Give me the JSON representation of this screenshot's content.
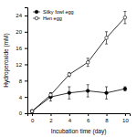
{
  "chart_data": {
    "type": "line",
    "x_label": "Incubation time (day)",
    "y_label": "Hydroperoxide (mM)",
    "x": [
      0,
      2,
      4,
      6,
      8,
      10
    ],
    "series": [
      {
        "name": "Silky fowl egg",
        "color": "#000000",
        "marker": "circle",
        "line_style": "solid",
        "values": [
          0.5,
          4,
          5,
          5.5,
          5,
          6
        ],
        "errors": [
          0.3,
          1,
          1.5,
          1.5,
          1.5,
          0.5
        ]
      },
      {
        "name": "Hen egg",
        "color": "#000000",
        "marker": "circle-open",
        "line_style": "solid",
        "values": [
          0.5,
          4.5,
          9.5,
          12.5,
          18.5,
          23.5
        ],
        "errors": [
          0.3,
          0.5,
          0.5,
          1,
          1.5,
          1.5
        ]
      }
    ],
    "xlim": [
      -0.5,
      10.5
    ],
    "xticks": [
      0,
      2,
      4,
      6,
      8,
      10
    ],
    "ylim": [
      0,
      26
    ],
    "yticks": [
      0,
      4,
      8,
      12,
      16,
      20,
      24
    ],
    "grid": false,
    "legend": "upper left"
  }
}
